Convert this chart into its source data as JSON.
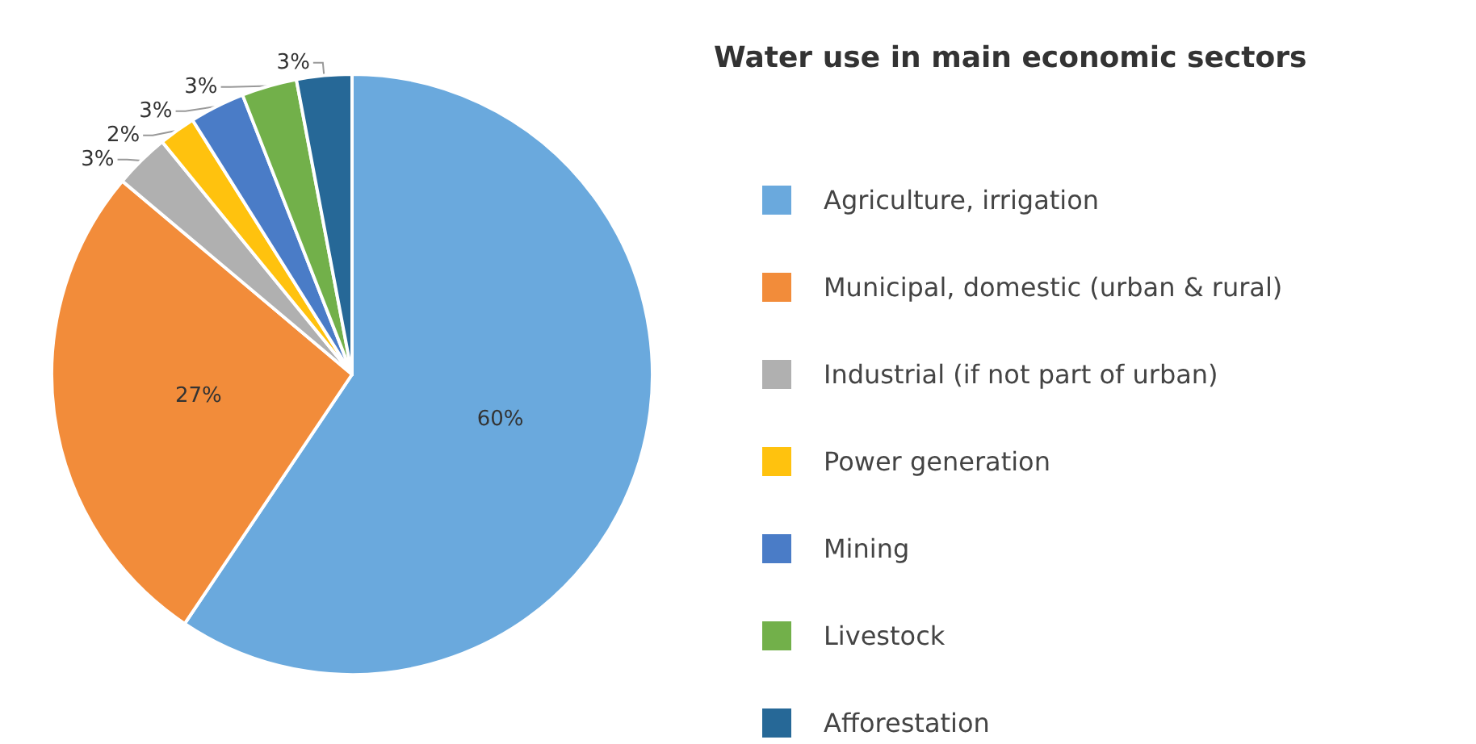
{
  "chart_data": {
    "type": "pie",
    "title": "Water use in main economic sectors",
    "categories": [
      "Agriculture, irrigation",
      "Municipal, domestic (urban & rural)",
      "Industrial (if not part of urban)",
      "Power generation",
      "Mining",
      "Livestock",
      "Afforestation"
    ],
    "values": [
      60,
      27,
      3,
      2,
      3,
      3,
      3
    ],
    "value_labels": [
      "60%",
      "27%",
      "3%",
      "2%",
      "3%",
      "3%",
      "3%"
    ],
    "colors": [
      "#6aa9dd",
      "#f28c3a",
      "#b0b0b0",
      "#ffc20e",
      "#4a7cc7",
      "#72b04a",
      "#266897"
    ],
    "legend": "right"
  }
}
